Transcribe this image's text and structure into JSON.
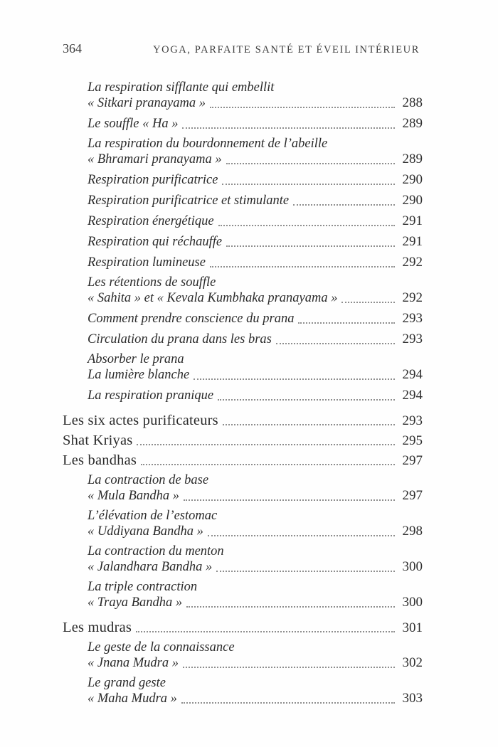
{
  "header": {
    "folio": "364",
    "running_title": "YOGA, PARFAITE SANTÉ ET ÉVEIL INTÉRIEUR"
  },
  "toc": {
    "entries": [
      {
        "level": "sub",
        "lines": [
          "La respiration sifflante qui embellit",
          "« Sitkari pranayama »"
        ],
        "page": "288"
      },
      {
        "level": "sub",
        "lines": [
          "Le souffle « Ha »"
        ],
        "page": "289"
      },
      {
        "level": "sub",
        "lines": [
          "La respiration du bourdonnement de l’abeille",
          "« Bhramari pranayama »"
        ],
        "page": "289"
      },
      {
        "level": "sub",
        "lines": [
          "Respiration purificatrice"
        ],
        "page": "290"
      },
      {
        "level": "sub",
        "lines": [
          "Respiration purificatrice et stimulante"
        ],
        "page": "290"
      },
      {
        "level": "sub",
        "lines": [
          "Respiration énergétique"
        ],
        "page": "291"
      },
      {
        "level": "sub",
        "lines": [
          "Respiration qui réchauffe"
        ],
        "page": "291"
      },
      {
        "level": "sub",
        "lines": [
          "Respiration lumineuse"
        ],
        "page": "292"
      },
      {
        "level": "sub",
        "lines": [
          "Les rétentions de souffle",
          "« Sahita » et « Kevala Kumbhaka pranayama »"
        ],
        "page": "292"
      },
      {
        "level": "sub",
        "lines": [
          "Comment prendre conscience du prana"
        ],
        "page": "293"
      },
      {
        "level": "sub",
        "lines": [
          "Circulation du prana dans les bras"
        ],
        "page": "293"
      },
      {
        "level": "sub",
        "lines": [
          "Absorber le prana",
          "La lumière blanche"
        ],
        "page": "294"
      },
      {
        "level": "sub",
        "lines": [
          "La respiration pranique"
        ],
        "page": "294"
      },
      {
        "level": "main",
        "gap_before": true,
        "lines": [
          "Les six actes purificateurs"
        ],
        "page": "293"
      },
      {
        "level": "main",
        "lines": [
          "Shat Kriyas"
        ],
        "page": "295"
      },
      {
        "level": "main",
        "lines": [
          "Les bandhas"
        ],
        "page": "297"
      },
      {
        "level": "sub",
        "lines": [
          "La contraction de base",
          "« Mula Bandha »"
        ],
        "page": "297"
      },
      {
        "level": "sub",
        "lines": [
          "L’élévation de l’estomac",
          "« Uddiyana Bandha »"
        ],
        "page": "298"
      },
      {
        "level": "sub",
        "lines": [
          "La contraction du menton",
          "« Jalandhara Bandha »"
        ],
        "page": "300"
      },
      {
        "level": "sub",
        "lines": [
          "La triple contraction",
          "« Traya Bandha »"
        ],
        "page": "300"
      },
      {
        "level": "main",
        "gap_before": true,
        "lines": [
          "Les mudras"
        ],
        "page": "301"
      },
      {
        "level": "sub",
        "lines": [
          "Le geste de la connaissance",
          "« Jnana Mudra »"
        ],
        "page": "302"
      },
      {
        "level": "sub",
        "lines": [
          "Le grand geste",
          "« Maha Mudra »"
        ],
        "page": "303"
      }
    ]
  }
}
